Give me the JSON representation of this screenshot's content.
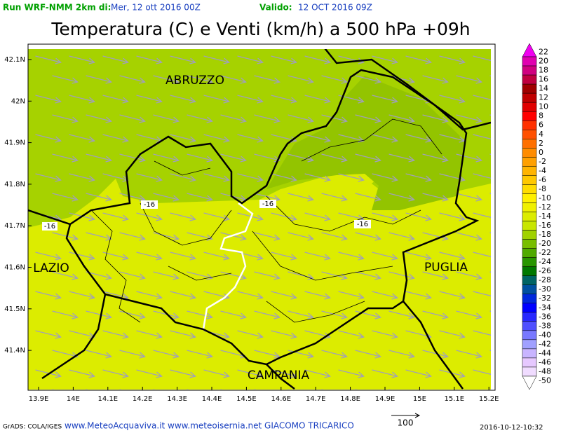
{
  "header": {
    "run": "Run WRF-NMM 2km di:",
    "run_date": "Mer, 12 ott 2016 00Z",
    "valid": "Valido:",
    "valid_date": "12 OCT 2016 09Z",
    "title": "Temperatura (C) e Venti (km/h) a 500 hPa +09h"
  },
  "map": {
    "lat_labels": [
      "42.1N",
      "42N",
      "41.9N",
      "41.8N",
      "41.7N",
      "41.6N",
      "41.5N",
      "41.4N"
    ],
    "lon_labels": [
      "13.9E",
      "14E",
      "14.1E",
      "14.2E",
      "14.3E",
      "14.4E",
      "14.5E",
      "14.6E",
      "14.7E",
      "14.8E",
      "14.9E",
      "15E",
      "15.1E",
      "15.2E"
    ],
    "regions": [
      "ABRUZZO",
      "LAZIO",
      "PUGLIA",
      "CAMPANIA"
    ],
    "contour_labels": [
      "-16",
      "-16",
      "-16",
      "-16"
    ]
  },
  "colorbar": {
    "labels": [
      "22",
      "20",
      "18",
      "16",
      "14",
      "12",
      "10",
      "8",
      "6",
      "4",
      "2",
      "0",
      "-2",
      "-4",
      "-6",
      "-8",
      "-10",
      "-12",
      "-14",
      "-16",
      "-18",
      "-20",
      "-22",
      "-24",
      "-26",
      "-28",
      "-30",
      "-32",
      "-34",
      "-36",
      "-38",
      "-40",
      "-42",
      "-44",
      "-46",
      "-48",
      "-50"
    ],
    "colors": [
      "#f000f0",
      "#e000b0",
      "#d00080",
      "#c00040",
      "#a00000",
      "#c00000",
      "#e00000",
      "#ff0000",
      "#ff3000",
      "#ff5000",
      "#ff7000",
      "#ff8c00",
      "#ffa000",
      "#ffb400",
      "#ffc800",
      "#ffdc00",
      "#fff000",
      "#f0f000",
      "#dcec00",
      "#c8e600",
      "#a0d200",
      "#78be00",
      "#50aa00",
      "#289600",
      "#007800",
      "#006464",
      "#0050a0",
      "#0028dc",
      "#0000ff",
      "#2828ff",
      "#5050ff",
      "#7878ff",
      "#a0a0ff",
      "#c8b4ff",
      "#e6c8ff",
      "#f0dcff",
      "#ffffff"
    ]
  },
  "footer": {
    "grads": "GrADS: COLA/IGES",
    "credits": "www.MeteoAcquaviva.it www.meteoisernia.net GIACOMO TRICARICO",
    "scale": "100",
    "timestamp": "2016-10-12-10:32"
  }
}
